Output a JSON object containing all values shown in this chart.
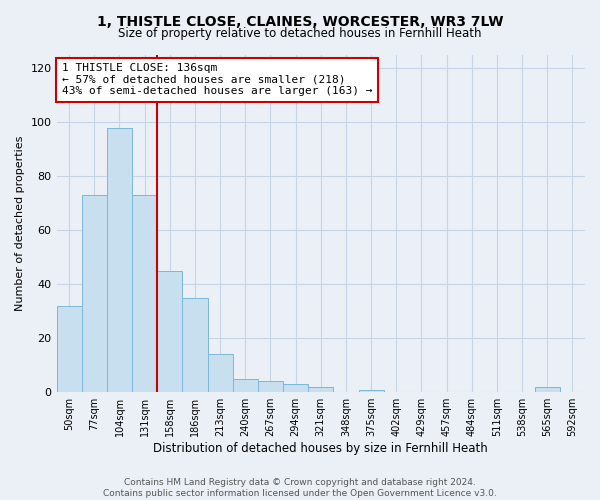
{
  "title_line1": "1, THISTLE CLOSE, CLAINES, WORCESTER, WR3 7LW",
  "title_line2": "Size of property relative to detached houses in Fernhill Heath",
  "xlabel": "Distribution of detached houses by size in Fernhill Heath",
  "ylabel": "Number of detached properties",
  "bin_labels": [
    "50sqm",
    "77sqm",
    "104sqm",
    "131sqm",
    "158sqm",
    "186sqm",
    "213sqm",
    "240sqm",
    "267sqm",
    "294sqm",
    "321sqm",
    "348sqm",
    "375sqm",
    "402sqm",
    "429sqm",
    "457sqm",
    "484sqm",
    "511sqm",
    "538sqm",
    "565sqm",
    "592sqm"
  ],
  "bar_heights": [
    32,
    73,
    98,
    73,
    45,
    35,
    14,
    5,
    4,
    3,
    2,
    0,
    1,
    0,
    0,
    0,
    0,
    0,
    0,
    2,
    0
  ],
  "bar_color": "#c8dff0",
  "bar_edge_color": "#7ab8d9",
  "vline_color": "#cc0000",
  "vline_x": 3.5,
  "annotation_text": "1 THISTLE CLOSE: 136sqm\n← 57% of detached houses are smaller (218)\n43% of semi-detached houses are larger (163) →",
  "annotation_box_color": "white",
  "annotation_box_edge_color": "#cc0000",
  "ylim": [
    0,
    125
  ],
  "yticks": [
    0,
    20,
    40,
    60,
    80,
    100,
    120
  ],
  "footer_text": "Contains HM Land Registry data © Crown copyright and database right 2024.\nContains public sector information licensed under the Open Government Licence v3.0.",
  "background_color": "#eaf0f6",
  "grid_color": "#c5d5e5"
}
